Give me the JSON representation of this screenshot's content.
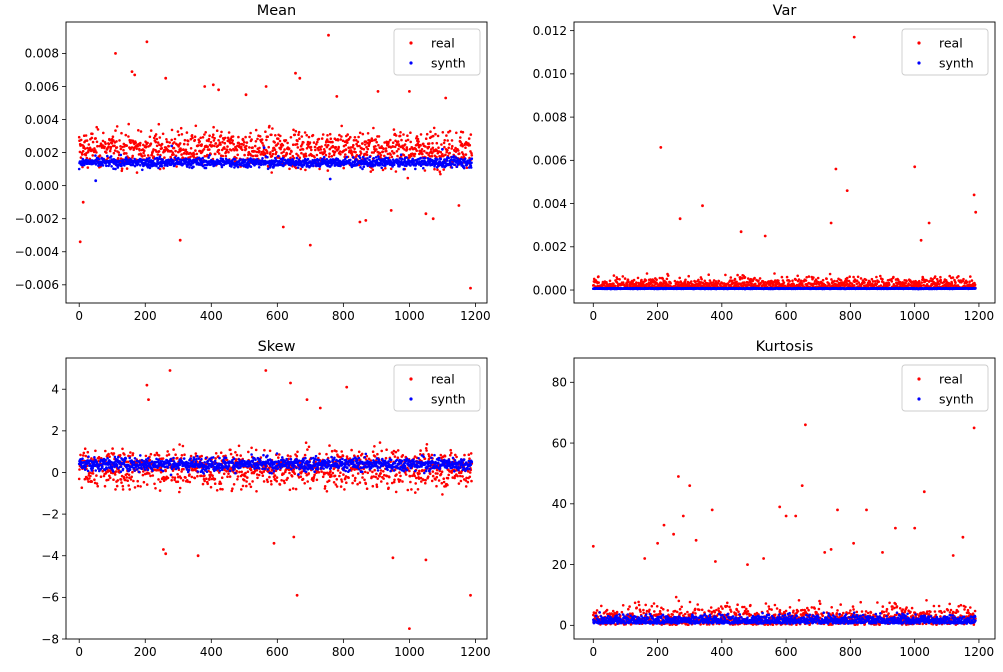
{
  "chart_data": [
    {
      "type": "scatter",
      "title": "Mean",
      "xlabel": "",
      "ylabel": "",
      "xlim": [
        -40,
        1235
      ],
      "ylim": [
        -0.0071,
        0.0099
      ],
      "xticks": [
        0,
        200,
        400,
        600,
        800,
        1000,
        1200
      ],
      "xtick_labels": [
        "0",
        "200",
        "400",
        "600",
        "800",
        "1000",
        "1200"
      ],
      "yticks": [
        -0.006,
        -0.004,
        -0.002,
        0.0,
        0.002,
        0.004,
        0.006,
        0.008
      ],
      "ytick_labels": [
        "−0.006",
        "−0.004",
        "−0.002",
        "0.000",
        "0.002",
        "0.004",
        "0.006",
        "0.008"
      ],
      "legend": "top-right",
      "series": [
        {
          "name": "real",
          "color": "#ff0000",
          "base": 0.0022,
          "spread": 0.0017,
          "x": [
            3,
            12,
            110,
            160,
            168,
            205,
            262,
            306,
            380,
            406,
            422,
            505,
            566,
            618,
            655,
            668,
            700,
            755,
            780,
            850,
            868,
            905,
            945,
            1000,
            1050,
            1072,
            1110,
            1150,
            1185
          ],
          "y": [
            -0.0034,
            -0.001,
            0.008,
            0.0069,
            0.0067,
            0.0087,
            0.0065,
            -0.0033,
            0.006,
            0.0061,
            0.0058,
            0.0055,
            0.006,
            -0.0025,
            0.0068,
            0.0065,
            -0.0036,
            0.0091,
            0.0054,
            -0.0022,
            -0.0021,
            0.0057,
            -0.0015,
            0.0057,
            -0.0017,
            -0.002,
            0.0053,
            -0.0012,
            -0.0062
          ]
        },
        {
          "name": "synth",
          "color": "#0000ff",
          "base": 0.0014,
          "spread": 0.00045,
          "x": [
            50,
            280,
            560,
            760,
            1100
          ],
          "y": [
            0.0003,
            0.0024,
            0.0023,
            0.0004,
            0.0022
          ]
        }
      ]
    },
    {
      "type": "scatter",
      "title": "Var",
      "xlabel": "",
      "ylabel": "",
      "xlim": [
        -60,
        1250
      ],
      "ylim": [
        -0.0006,
        0.0124
      ],
      "xticks": [
        0,
        200,
        400,
        600,
        800,
        1000,
        1200
      ],
      "xtick_labels": [
        "0",
        "200",
        "400",
        "600",
        "800",
        "1000",
        "1200"
      ],
      "yticks": [
        0.0,
        0.002,
        0.004,
        0.006,
        0.008,
        0.01,
        0.012
      ],
      "ytick_labels": [
        "0.000",
        "0.002",
        "0.004",
        "0.006",
        "0.008",
        "0.010",
        "0.012"
      ],
      "legend": "top-right",
      "series": [
        {
          "name": "real",
          "color": "#ff0000",
          "base": 0.0003,
          "spread": 0.0006,
          "x": [
            210,
            270,
            340,
            460,
            535,
            740,
            755,
            790,
            812,
            1000,
            1020,
            1045,
            1185,
            1190
          ],
          "y": [
            0.0066,
            0.0033,
            0.0039,
            0.0027,
            0.0025,
            0.0031,
            0.0056,
            0.0046,
            0.0117,
            0.0057,
            0.0023,
            0.0031,
            0.0044,
            0.0036
          ]
        },
        {
          "name": "synth",
          "color": "#0000ff",
          "base": 7e-05,
          "spread": 3e-05,
          "x": [],
          "y": []
        }
      ]
    },
    {
      "type": "scatter",
      "title": "Skew",
      "xlabel": "",
      "ylabel": "",
      "xlim": [
        -40,
        1235
      ],
      "ylim": [
        -8.0,
        5.5
      ],
      "xticks": [
        0,
        200,
        400,
        600,
        800,
        1000,
        1200
      ],
      "xtick_labels": [
        "0",
        "200",
        "400",
        "600",
        "800",
        "1000",
        "1200"
      ],
      "yticks": [
        -8,
        -6,
        -4,
        -2,
        0,
        2,
        4
      ],
      "ytick_labels": [
        "−8",
        "−6",
        "−4",
        "−2",
        "0",
        "2",
        "4"
      ],
      "legend": "top-right",
      "series": [
        {
          "name": "real",
          "color": "#ff0000",
          "base": 0.2,
          "spread": 1.4,
          "x": [
            205,
            210,
            255,
            262,
            275,
            360,
            565,
            590,
            640,
            650,
            660,
            690,
            730,
            810,
            950,
            1000,
            1050,
            1185
          ],
          "y": [
            4.2,
            3.5,
            -3.7,
            -3.9,
            4.9,
            -4.0,
            4.9,
            -3.4,
            4.3,
            -3.1,
            -5.9,
            3.5,
            3.1,
            4.1,
            -4.1,
            -7.5,
            -4.2,
            -5.9
          ]
        },
        {
          "name": "synth",
          "color": "#0000ff",
          "base": 0.4,
          "spread": 0.5,
          "x": [],
          "y": []
        }
      ]
    },
    {
      "type": "scatter",
      "title": "Kurtosis",
      "xlabel": "",
      "ylabel": "",
      "xlim": [
        -60,
        1250
      ],
      "ylim": [
        -4.5,
        88
      ],
      "xticks": [
        0,
        200,
        400,
        600,
        800,
        1000,
        1200
      ],
      "xtick_labels": [
        "0",
        "200",
        "400",
        "600",
        "800",
        "1000",
        "1200"
      ],
      "yticks": [
        0,
        20,
        40,
        60,
        80
      ],
      "ytick_labels": [
        "0",
        "20",
        "40",
        "60",
        "80"
      ],
      "legend": "top-right",
      "series": [
        {
          "name": "real",
          "color": "#ff0000",
          "base": 3.0,
          "spread": 6.0,
          "x": [
            0,
            160,
            200,
            220,
            250,
            265,
            280,
            300,
            320,
            370,
            380,
            480,
            530,
            580,
            600,
            630,
            650,
            660,
            720,
            740,
            760,
            810,
            850,
            900,
            940,
            1000,
            1030,
            1120,
            1150,
            1185
          ],
          "y": [
            26,
            22,
            27,
            33,
            30,
            49,
            36,
            46,
            28,
            38,
            21,
            20,
            22,
            39,
            36,
            36,
            46,
            66,
            24,
            25,
            38,
            27,
            38,
            24,
            32,
            32,
            44,
            23,
            29,
            65
          ]
        },
        {
          "name": "synth",
          "color": "#0000ff",
          "base": 2.5,
          "spread": 2.5,
          "x": [],
          "y": []
        }
      ]
    }
  ]
}
